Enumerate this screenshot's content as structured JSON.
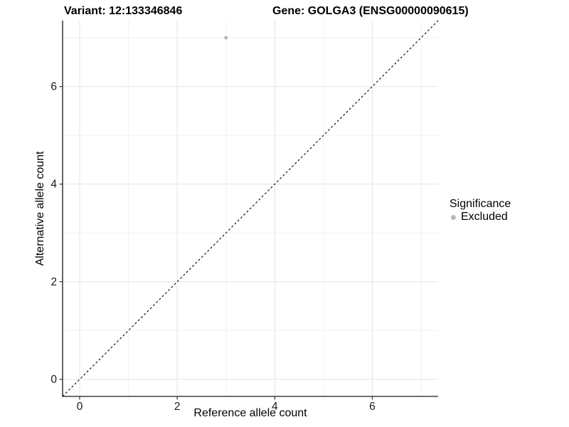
{
  "header": {
    "variant_title": "Variant: 12:133346846",
    "gene_title": "Gene: GOLGA3 (ENSG00000090615)"
  },
  "chart_data": {
    "type": "scatter",
    "title": "Variant: 12:133346846    Gene: GOLGA3 (ENSG00000090615)",
    "xlabel": "Reference allele count",
    "ylabel": "Alternative allele count",
    "xlim": [
      -0.35,
      7.35
    ],
    "ylim": [
      -0.35,
      7.35
    ],
    "x_major_ticks": [
      0,
      2,
      4,
      6
    ],
    "y_major_ticks": [
      0,
      2,
      4,
      6
    ],
    "x_minor_ticks": [
      1,
      3,
      5,
      7
    ],
    "y_minor_ticks": [
      1,
      3,
      5,
      7
    ],
    "grid": "on",
    "series": [
      {
        "name": "Excluded",
        "points": [
          {
            "x": 3,
            "y": 7
          }
        ]
      }
    ],
    "reference_line": {
      "kind": "identity",
      "x1": -0.35,
      "y1": -0.35,
      "x2": 7.35,
      "y2": 7.35,
      "style": "dashed"
    },
    "legend": {
      "title": "Significance",
      "position": "right",
      "items": [
        {
          "label": "Excluded",
          "color": "#b8b8b8",
          "marker": "circle"
        }
      ]
    },
    "colors": {
      "point": "#bdbdbd",
      "reference_line": "#000000",
      "grid_major": "#e4e4e4",
      "grid_minor": "#f1f1f1",
      "axis_line": "#404040",
      "tick_mark": "#333333",
      "tick_label": "#1a1a1a"
    }
  }
}
